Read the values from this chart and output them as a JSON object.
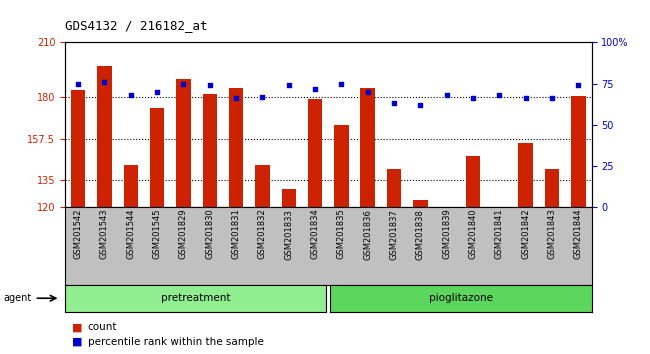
{
  "title": "GDS4132 / 216182_at",
  "samples": [
    "GSM201542",
    "GSM201543",
    "GSM201544",
    "GSM201545",
    "GSM201829",
    "GSM201830",
    "GSM201831",
    "GSM201832",
    "GSM201833",
    "GSM201834",
    "GSM201835",
    "GSM201836",
    "GSM201837",
    "GSM201838",
    "GSM201839",
    "GSM201840",
    "GSM201841",
    "GSM201842",
    "GSM201843",
    "GSM201844"
  ],
  "counts": [
    184,
    197,
    143,
    174,
    190,
    182,
    185,
    143,
    130,
    179,
    165,
    185,
    141,
    124,
    120,
    148,
    120,
    155,
    141,
    181
  ],
  "percentile_ranks": [
    75,
    76,
    68,
    70,
    75,
    74,
    66,
    67,
    74,
    72,
    75,
    70,
    63,
    62,
    68,
    66,
    68,
    66,
    66,
    74
  ],
  "y_min": 120,
  "y_max": 210,
  "y_ticks": [
    120,
    135,
    157.5,
    180,
    210
  ],
  "y_tick_labels": [
    "120",
    "135",
    "157.5",
    "180",
    "210"
  ],
  "y2_ticks": [
    0,
    25,
    50,
    75,
    100
  ],
  "y2_tick_labels": [
    "0",
    "25",
    "50",
    "75",
    "100%"
  ],
  "bar_color": "#cc2200",
  "scatter_color": "#0000cc",
  "bar_width": 0.55,
  "pretreatment_count": 10,
  "pretreatment_label": "pretreatment",
  "pioglitazone_label": "pioglitazone",
  "agent_label": "agent",
  "legend_count_label": "count",
  "legend_percentile_label": "percentile rank within the sample",
  "group_color_pre": "#90ee90",
  "group_color_pio": "#5cd65c",
  "background_color": "#ffffff",
  "plot_bg_color": "#ffffff",
  "xtick_bg_color": "#c0c0c0",
  "grid_color": "#000000",
  "grid_style": "dotted"
}
